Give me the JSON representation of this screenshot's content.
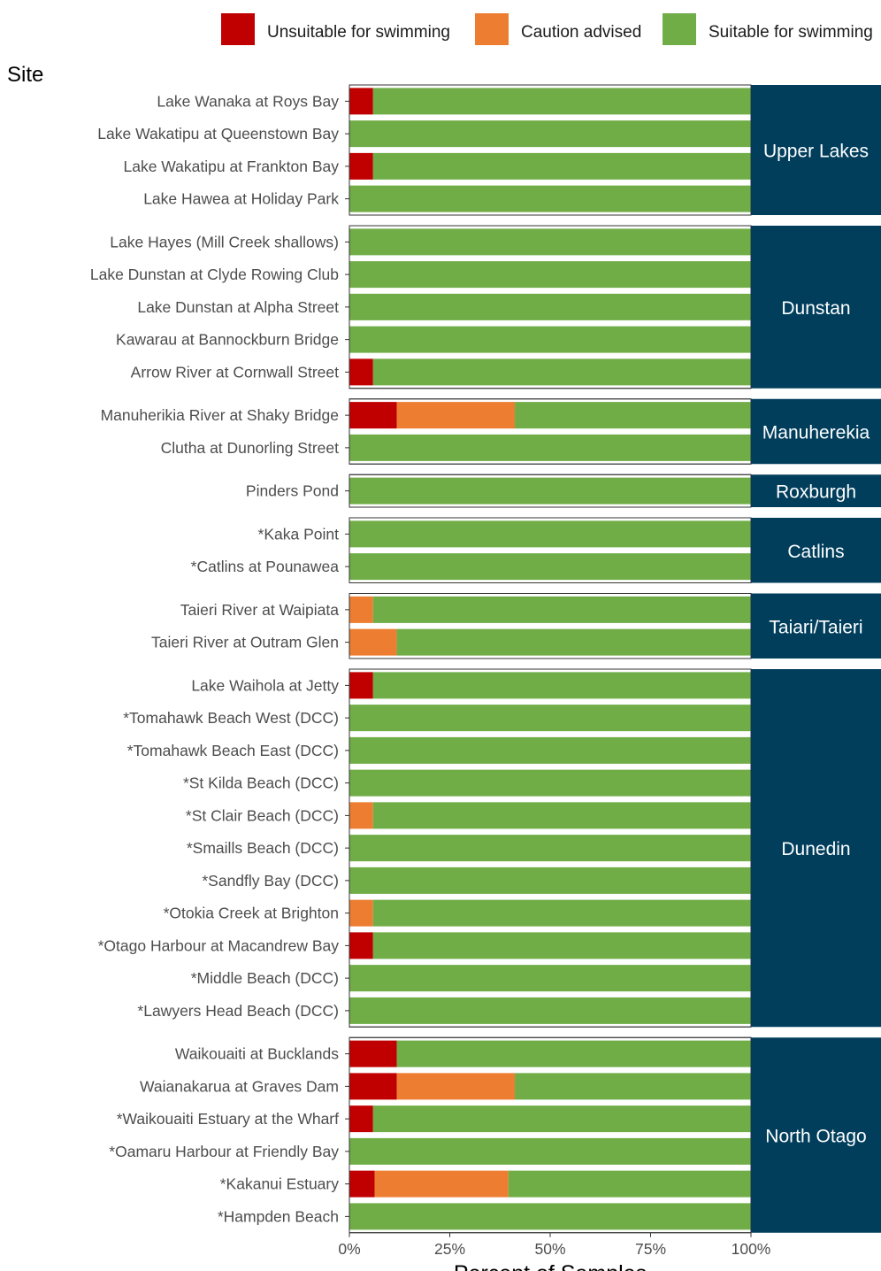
{
  "chart_data": {
    "type": "bar",
    "orientation": "horizontal",
    "stacked": true,
    "ylabel": "Site",
    "xlabel": "Percent of Samples",
    "xlim": [
      0,
      100
    ],
    "x_ticks": [
      0,
      25,
      50,
      75,
      100
    ],
    "x_tick_labels": [
      "0%",
      "25%",
      "50%",
      "75%",
      "100%"
    ],
    "grid": false,
    "legend_position": "top",
    "legend": [
      {
        "name": "Unsuitable for swimming",
        "color": "#c00000"
      },
      {
        "name": "Caution advised",
        "color": "#ed7d31"
      },
      {
        "name": "Suitable for swimming",
        "color": "#70ad47"
      }
    ],
    "facet_strip_color": "#003e5c",
    "groups": [
      {
        "name": "Upper Lakes",
        "sites": [
          {
            "name": "Lake Wanaka at Roys Bay",
            "values": [
              5.9,
              0,
              94.1
            ]
          },
          {
            "name": "Lake Wakatipu at Queenstown Bay",
            "values": [
              0,
              0,
              100
            ]
          },
          {
            "name": "Lake Wakatipu at Frankton Bay",
            "values": [
              5.9,
              0,
              94.1
            ]
          },
          {
            "name": "Lake Hawea at Holiday Park",
            "values": [
              0,
              0,
              100
            ]
          }
        ]
      },
      {
        "name": "Dunstan",
        "sites": [
          {
            "name": "Lake Hayes (Mill Creek shallows)",
            "values": [
              0,
              0,
              100
            ]
          },
          {
            "name": "Lake Dunstan at Clyde Rowing Club",
            "values": [
              0,
              0,
              100
            ]
          },
          {
            "name": "Lake Dunstan at Alpha Street",
            "values": [
              0,
              0,
              100
            ]
          },
          {
            "name": "Kawarau at Bannockburn Bridge",
            "values": [
              0,
              0,
              100
            ]
          },
          {
            "name": "Arrow River at Cornwall Street",
            "values": [
              5.9,
              0,
              94.1
            ]
          }
        ]
      },
      {
        "name": "Manuherekia",
        "sites": [
          {
            "name": "Manuherikia River at Shaky Bridge",
            "values": [
              11.8,
              29.4,
              58.8
            ]
          },
          {
            "name": "Clutha at Dunorling Street",
            "values": [
              0,
              0,
              100
            ]
          }
        ]
      },
      {
        "name": "Roxburgh",
        "sites": [
          {
            "name": "Pinders Pond",
            "values": [
              0,
              0,
              100
            ]
          }
        ]
      },
      {
        "name": "Catlins",
        "sites": [
          {
            "name": "*Kaka Point",
            "values": [
              0,
              0,
              100
            ]
          },
          {
            "name": "*Catlins at Pounawea",
            "values": [
              0,
              0,
              100
            ]
          }
        ]
      },
      {
        "name": "Taiari/Taieri",
        "sites": [
          {
            "name": "Taieri River at Waipiata",
            "values": [
              0,
              5.9,
              94.1
            ]
          },
          {
            "name": "Taieri River at Outram Glen",
            "values": [
              0,
              11.8,
              88.2
            ]
          }
        ]
      },
      {
        "name": "Dunedin",
        "sites": [
          {
            "name": "Lake Waihola at Jetty",
            "values": [
              5.9,
              0,
              94.1
            ]
          },
          {
            "name": "*Tomahawk Beach West (DCC)",
            "values": [
              0,
              0,
              100
            ]
          },
          {
            "name": "*Tomahawk Beach East (DCC)",
            "values": [
              0,
              0,
              100
            ]
          },
          {
            "name": "*St Kilda Beach (DCC)",
            "values": [
              0,
              0,
              100
            ]
          },
          {
            "name": "*St Clair Beach (DCC)",
            "values": [
              0,
              5.9,
              94.1
            ]
          },
          {
            "name": "*Smaills Beach (DCC)",
            "values": [
              0,
              0,
              100
            ]
          },
          {
            "name": "*Sandfly Bay (DCC)",
            "values": [
              0,
              0,
              100
            ]
          },
          {
            "name": "*Otokia Creek at Brighton",
            "values": [
              0,
              5.9,
              94.1
            ]
          },
          {
            "name": "*Otago Harbour at Macandrew Bay",
            "values": [
              5.9,
              0,
              94.1
            ]
          },
          {
            "name": "*Middle Beach (DCC)",
            "values": [
              0,
              0,
              100
            ]
          },
          {
            "name": "*Lawyers Head Beach (DCC)",
            "values": [
              0,
              0,
              100
            ]
          }
        ]
      },
      {
        "name": "North Otago",
        "sites": [
          {
            "name": "Waikouaiti at Bucklands",
            "values": [
              11.8,
              0,
              88.2
            ]
          },
          {
            "name": "Waianakarua at Graves Dam",
            "values": [
              11.8,
              29.4,
              58.8
            ]
          },
          {
            "name": "*Waikouaiti Estuary at the Wharf",
            "values": [
              5.9,
              0,
              94.1
            ]
          },
          {
            "name": "*Oamaru Harbour at Friendly Bay",
            "values": [
              0,
              0,
              100
            ]
          },
          {
            "name": "*Kakanui Estuary",
            "values": [
              6.3,
              33.3,
              60.4
            ]
          },
          {
            "name": "*Hampden Beach",
            "values": [
              0,
              0,
              100
            ]
          }
        ]
      }
    ]
  }
}
